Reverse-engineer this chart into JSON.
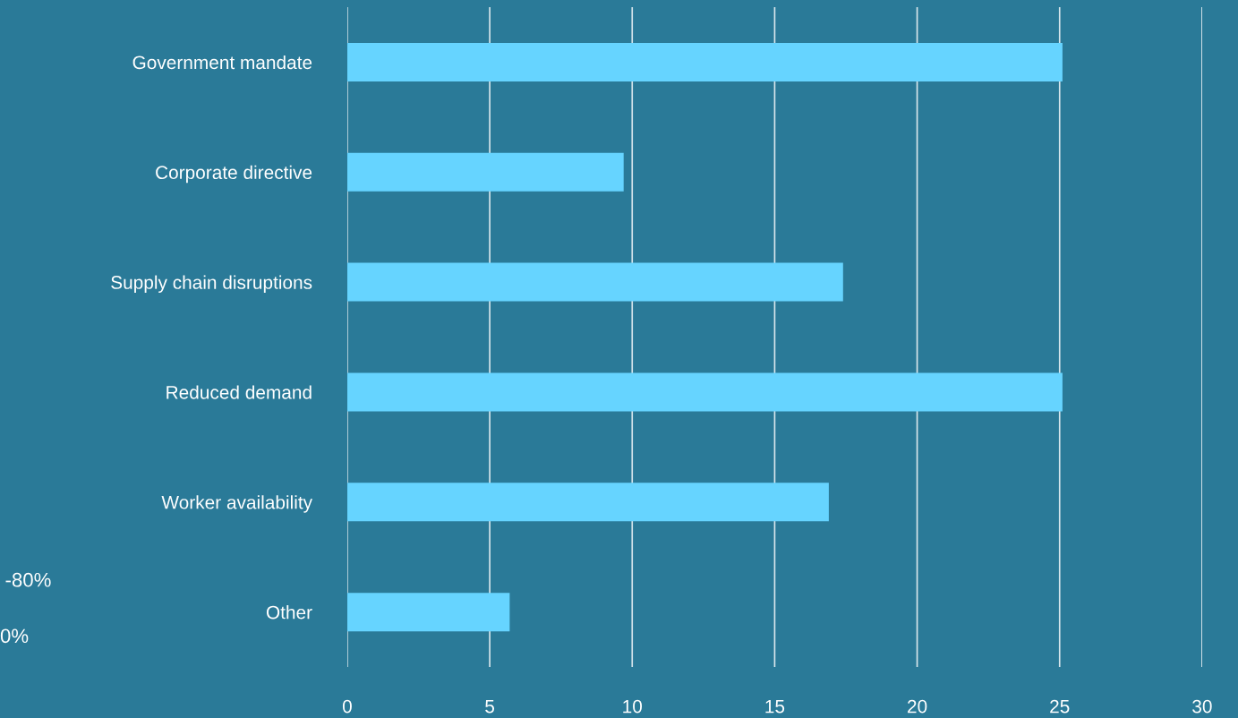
{
  "chart_data": {
    "type": "bar",
    "orientation": "horizontal",
    "categories": [
      "Government mandate",
      "Corporate directive",
      "Supply chain disruptions",
      "Reduced demand",
      "Worker availability",
      "Other"
    ],
    "values": [
      25.1,
      9.7,
      17.4,
      25.1,
      16.9,
      5.7
    ],
    "color": "#66d4ff",
    "xlim": [
      0,
      30
    ],
    "xticks": [
      0,
      5,
      10,
      15,
      20,
      25,
      30
    ],
    "grid": "x",
    "legend": false,
    "annotations": [
      "-80%",
      "0%"
    ]
  }
}
